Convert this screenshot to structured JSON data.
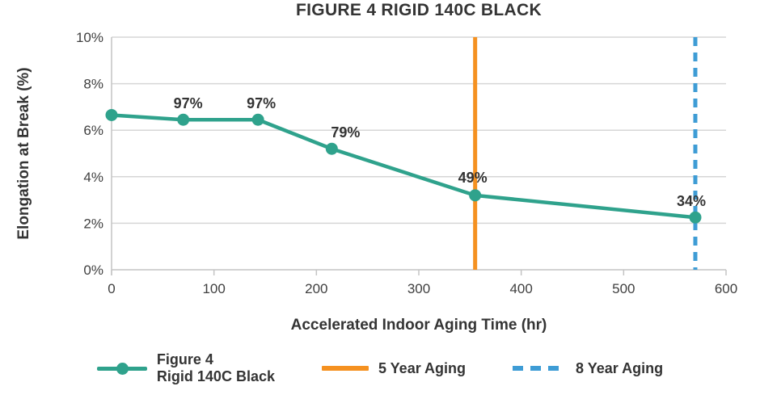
{
  "chart": {
    "title": "FIGURE 4 RIGID 140C BLACK",
    "y_axis_title": "Elongation at Break (%)",
    "x_axis_title": "Accelerated Indoor Aging Time (hr)"
  },
  "legend": {
    "series_line1": "Figure 4",
    "series_line2": "Rigid 140C Black",
    "five_year_label": "5 Year Aging",
    "eight_year_label": "8 Year Aging"
  },
  "colors": {
    "series": "#2FA28C",
    "five_year": "#F59120",
    "eight_year": "#3E9CD5",
    "title_text": "#343434",
    "tick_text": "#3F3F3F",
    "data_label_text": "#333333",
    "grid": "#D6D6D6",
    "axis": "#C4C4C4"
  },
  "chart_data": {
    "type": "line",
    "title": "FIGURE 4 RIGID 140C BLACK",
    "xlabel": "Accelerated Indoor Aging Time (hr)",
    "ylabel": "Elongation at Break (%)",
    "xlim": [
      0,
      600
    ],
    "ylim": [
      0,
      10
    ],
    "grid": "horizontal-only",
    "legend_position": "bottom",
    "x_ticks": [
      {
        "value": 0,
        "label": "0"
      },
      {
        "value": 100,
        "label": "100"
      },
      {
        "value": 200,
        "label": "200"
      },
      {
        "value": 300,
        "label": "300"
      },
      {
        "value": 400,
        "label": "400"
      },
      {
        "value": 500,
        "label": "500"
      },
      {
        "value": 600,
        "label": "600"
      }
    ],
    "y_ticks": [
      {
        "value": 0,
        "label": "0%"
      },
      {
        "value": 2,
        "label": "2%"
      },
      {
        "value": 4,
        "label": "4%"
      },
      {
        "value": 6,
        "label": "6%"
      },
      {
        "value": 8,
        "label": "8%"
      },
      {
        "value": 10,
        "label": "10%"
      }
    ],
    "series": [
      {
        "name": "Figure 4 Rigid 140C Black",
        "color_key": "series",
        "x": [
          0,
          70,
          143,
          215,
          355,
          570
        ],
        "y": [
          6.65,
          6.45,
          6.45,
          5.2,
          3.2,
          2.25
        ],
        "point_labels": [
          "",
          "97%",
          "97%",
          "79%",
          "49%",
          "34%"
        ],
        "label_dx": [
          0,
          6,
          4,
          17,
          -3,
          -5
        ],
        "label_dy": [
          -14,
          -14,
          -14,
          -14,
          -16,
          -14
        ]
      }
    ],
    "vlines": [
      {
        "x": 355,
        "name": "5 Year Aging",
        "color_key": "five_year",
        "dash": null
      },
      {
        "x": 570,
        "name": "8 Year Aging",
        "color_key": "eight_year",
        "dash": [
          11,
          8
        ]
      }
    ]
  }
}
